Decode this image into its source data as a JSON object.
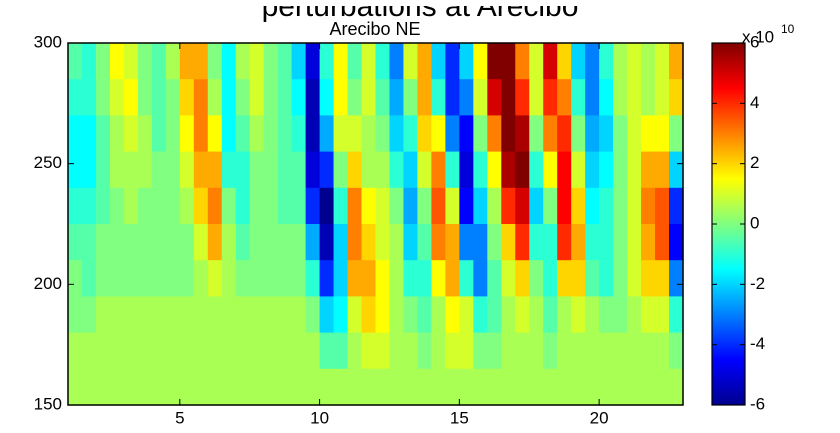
{
  "chart_data": {
    "type": "heatmap",
    "header_text": "perturbations at Arecibo",
    "title": "Arecibo NE",
    "colormap": "jet",
    "clim": [
      -6,
      6
    ],
    "colorbar_label": "x 10",
    "colorbar_exponent": "10",
    "colorbar_ticks": [
      -6,
      -4,
      -2,
      0,
      2,
      4,
      6
    ],
    "xlim": [
      1,
      23
    ],
    "ylim": [
      150,
      300
    ],
    "xticks": [
      5,
      10,
      15,
      20
    ],
    "yticks": [
      150,
      200,
      250,
      300
    ],
    "x": [
      1.25,
      1.75,
      2.25,
      2.75,
      3.25,
      3.75,
      4.25,
      4.75,
      5.25,
      5.75,
      6.25,
      6.75,
      7.25,
      7.75,
      8.25,
      8.75,
      9.25,
      9.75,
      10.25,
      10.75,
      11.25,
      11.75,
      12.25,
      12.75,
      13.25,
      13.75,
      14.25,
      14.75,
      15.25,
      15.75,
      16.25,
      16.75,
      17.25,
      17.75,
      18.25,
      18.75,
      19.25,
      19.75,
      20.25,
      20.75,
      21.25,
      21.75,
      22.25,
      22.75
    ],
    "y": [
      292.5,
      277.5,
      262.5,
      247.5,
      232.5,
      217.5,
      202.5,
      187.5,
      172.5,
      157.5
    ],
    "values": [
      [
        -0.5,
        -1,
        0,
        1.5,
        1,
        0,
        -0.5,
        0.5,
        2.5,
        2.5,
        0,
        -1.5,
        0.5,
        1,
        0,
        -0.5,
        -2,
        -5,
        -1,
        1.5,
        -0.5,
        1,
        -1,
        -3,
        1,
        2.5,
        -2,
        -4,
        -2,
        1.5,
        6,
        6,
        3,
        1,
        5,
        2,
        -2,
        -3,
        -1,
        0.5,
        1,
        0.5,
        1,
        2.5
      ],
      [
        -1,
        -1,
        0,
        1,
        1.5,
        0,
        -0.5,
        0,
        2,
        3,
        0.5,
        -1.5,
        0,
        1,
        0,
        -0.5,
        -1.5,
        -5.5,
        -1.5,
        1.5,
        0,
        1,
        -0.5,
        -2.5,
        0,
        2.5,
        -1,
        -4,
        -3,
        1,
        5,
        6,
        4,
        1,
        4,
        3,
        -1,
        -3,
        -1.5,
        0.5,
        1,
        0.5,
        1,
        2
      ],
      [
        -1.5,
        -1.5,
        -0.5,
        0.5,
        1,
        0.5,
        -0.5,
        0,
        1.5,
        3,
        1.5,
        -1.5,
        -0.5,
        0.5,
        0,
        -0.5,
        -1,
        -5.5,
        -2.5,
        1,
        1,
        0.5,
        0,
        -2,
        -1,
        2,
        1.5,
        -3,
        -4.5,
        0,
        3,
        6,
        5.5,
        0,
        3,
        4,
        0,
        -2.5,
        -2,
        0,
        1,
        1.5,
        1.5,
        0
      ],
      [
        -1.5,
        -1.5,
        -0.5,
        0.5,
        0.5,
        0.5,
        0,
        0,
        1,
        2.5,
        2.5,
        -1,
        -1,
        0,
        0,
        -0.5,
        -0.5,
        -5,
        -4,
        0,
        2,
        0.5,
        0.5,
        -1,
        -2,
        1,
        3,
        -1,
        -5,
        -1,
        1.5,
        5.5,
        6,
        -1,
        1.5,
        4.5,
        1,
        -2,
        -1.5,
        0,
        1,
        2.5,
        2.5,
        -2
      ],
      [
        -1,
        -1,
        -0.5,
        0,
        0.5,
        0,
        0,
        0,
        0.5,
        2,
        3,
        0,
        -1,
        0,
        0,
        -0.5,
        -0.5,
        -4,
        -6,
        -1,
        3,
        1.5,
        1,
        0,
        -2.5,
        0,
        3.5,
        1,
        -4.5,
        -2,
        0.5,
        4,
        5,
        -2,
        0,
        4.5,
        2,
        -1.5,
        -1,
        0,
        1,
        3,
        3.5,
        -4
      ],
      [
        -0.5,
        -0.5,
        0,
        0,
        0,
        0,
        0,
        0,
        0,
        1,
        2.5,
        0.5,
        -0.5,
        0,
        0,
        0,
        0,
        -2.5,
        -5.5,
        -2,
        3,
        2,
        1,
        0.5,
        -2,
        -0.5,
        3,
        2.5,
        -3,
        -3,
        0,
        2,
        4,
        -1,
        -1,
        4,
        2.5,
        -1,
        -1,
        0,
        1,
        2.5,
        3.5,
        -4.5
      ],
      [
        0,
        -0.5,
        0,
        0,
        0,
        0,
        0,
        0,
        0,
        0.5,
        1,
        0.5,
        0,
        0,
        0,
        0,
        0,
        -1,
        -4,
        -2,
        2.5,
        2.5,
        1.5,
        0.5,
        -1,
        -1,
        1.5,
        2.5,
        -1,
        -3,
        -0.5,
        1,
        2,
        0,
        -1,
        2,
        2,
        -0.5,
        -1,
        0,
        1,
        2,
        2,
        -3
      ],
      [
        0,
        0,
        0.5,
        0.5,
        0.5,
        0.5,
        0.5,
        0.5,
        0.5,
        0.5,
        0.5,
        0.5,
        0.5,
        0.5,
        0.5,
        0.5,
        0.5,
        0,
        -2,
        -1.5,
        1,
        2,
        1.5,
        0.5,
        0,
        -0.5,
        0.5,
        1.5,
        1,
        -1,
        -0.5,
        0.5,
        1,
        0.5,
        -0.5,
        0.5,
        1,
        0.5,
        0,
        0,
        0.5,
        1,
        1,
        -1
      ],
      [
        0.5,
        0.5,
        0.5,
        0.5,
        0.5,
        0.5,
        0.5,
        0.5,
        0.5,
        0.5,
        0.5,
        0.5,
        0.5,
        0.5,
        0.5,
        0.5,
        0.5,
        0.5,
        -0.5,
        -0.5,
        0.5,
        1,
        1,
        0.5,
        0.5,
        0,
        0.5,
        1,
        1,
        0,
        0,
        0.5,
        0.5,
        0.5,
        0,
        0.5,
        0.5,
        0.5,
        0.5,
        0.5,
        0.5,
        0.5,
        0.5,
        0
      ],
      [
        0.5,
        0.5,
        0.5,
        0.5,
        0.5,
        0.5,
        0.5,
        0.5,
        0.5,
        0.5,
        0.5,
        0.5,
        0.5,
        0.5,
        0.5,
        0.5,
        0.5,
        0.5,
        0.5,
        0.5,
        0.5,
        0.5,
        0.5,
        0.5,
        0.5,
        0.5,
        0.5,
        0.5,
        0.5,
        0.5,
        0.5,
        0.5,
        0.5,
        0.5,
        0.5,
        0.5,
        0.5,
        0.5,
        0.5,
        0.5,
        0.5,
        0.5,
        0.5,
        0.5
      ]
    ]
  }
}
